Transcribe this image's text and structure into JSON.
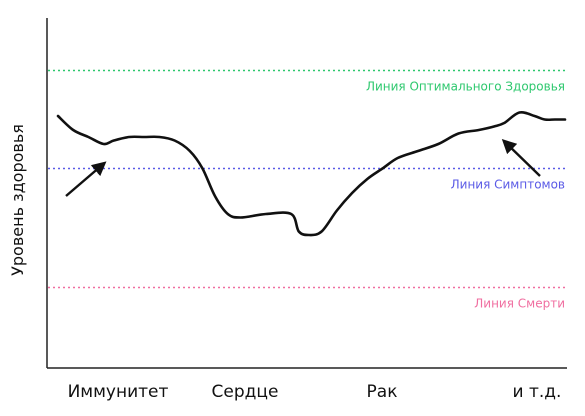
{
  "chart_data": {
    "type": "line",
    "title": "",
    "xlabel": "",
    "ylabel": "Уровень здоровья",
    "categories": [
      "Иммунитет",
      "Сердце",
      "Рак",
      "и т.д."
    ],
    "x_range": [
      0,
      100
    ],
    "ylim": [
      0,
      100
    ],
    "grid": false,
    "legend": "none",
    "reference_lines": [
      {
        "label": "Линия Оптимального Здоровья",
        "value": 85,
        "color": "#2ec86e",
        "style": "dotted"
      },
      {
        "label": "Линия Симптомов",
        "value": 57,
        "color": "#5a5ae6",
        "style": "dotted"
      },
      {
        "label": "Линия Смерти",
        "value": 23,
        "color": "#f06ea0",
        "style": "dotted"
      }
    ],
    "series": [
      {
        "color": "#111111",
        "x": [
          0,
          3,
          6,
          9,
          11,
          14,
          17,
          20,
          23,
          26,
          28.5,
          31,
          33.5,
          36,
          41,
          46,
          47.5,
          49.5,
          52,
          55,
          58,
          61,
          64,
          67,
          71,
          75,
          79,
          83,
          86,
          88,
          91,
          94,
          96,
          98,
          100
        ],
        "y": [
          72,
          68,
          66,
          64,
          65,
          66,
          66,
          66,
          65,
          62,
          57,
          49,
          44,
          43,
          44,
          44,
          39,
          38,
          39,
          45,
          50,
          54,
          57,
          60,
          62,
          64,
          67,
          68,
          69,
          70,
          73,
          72,
          71,
          71,
          71
        ]
      }
    ],
    "annotations": [
      {
        "type": "arrow",
        "direction": "up-right",
        "near": "Иммунитет"
      },
      {
        "type": "arrow",
        "direction": "up-left",
        "near": "и т.д."
      }
    ]
  }
}
